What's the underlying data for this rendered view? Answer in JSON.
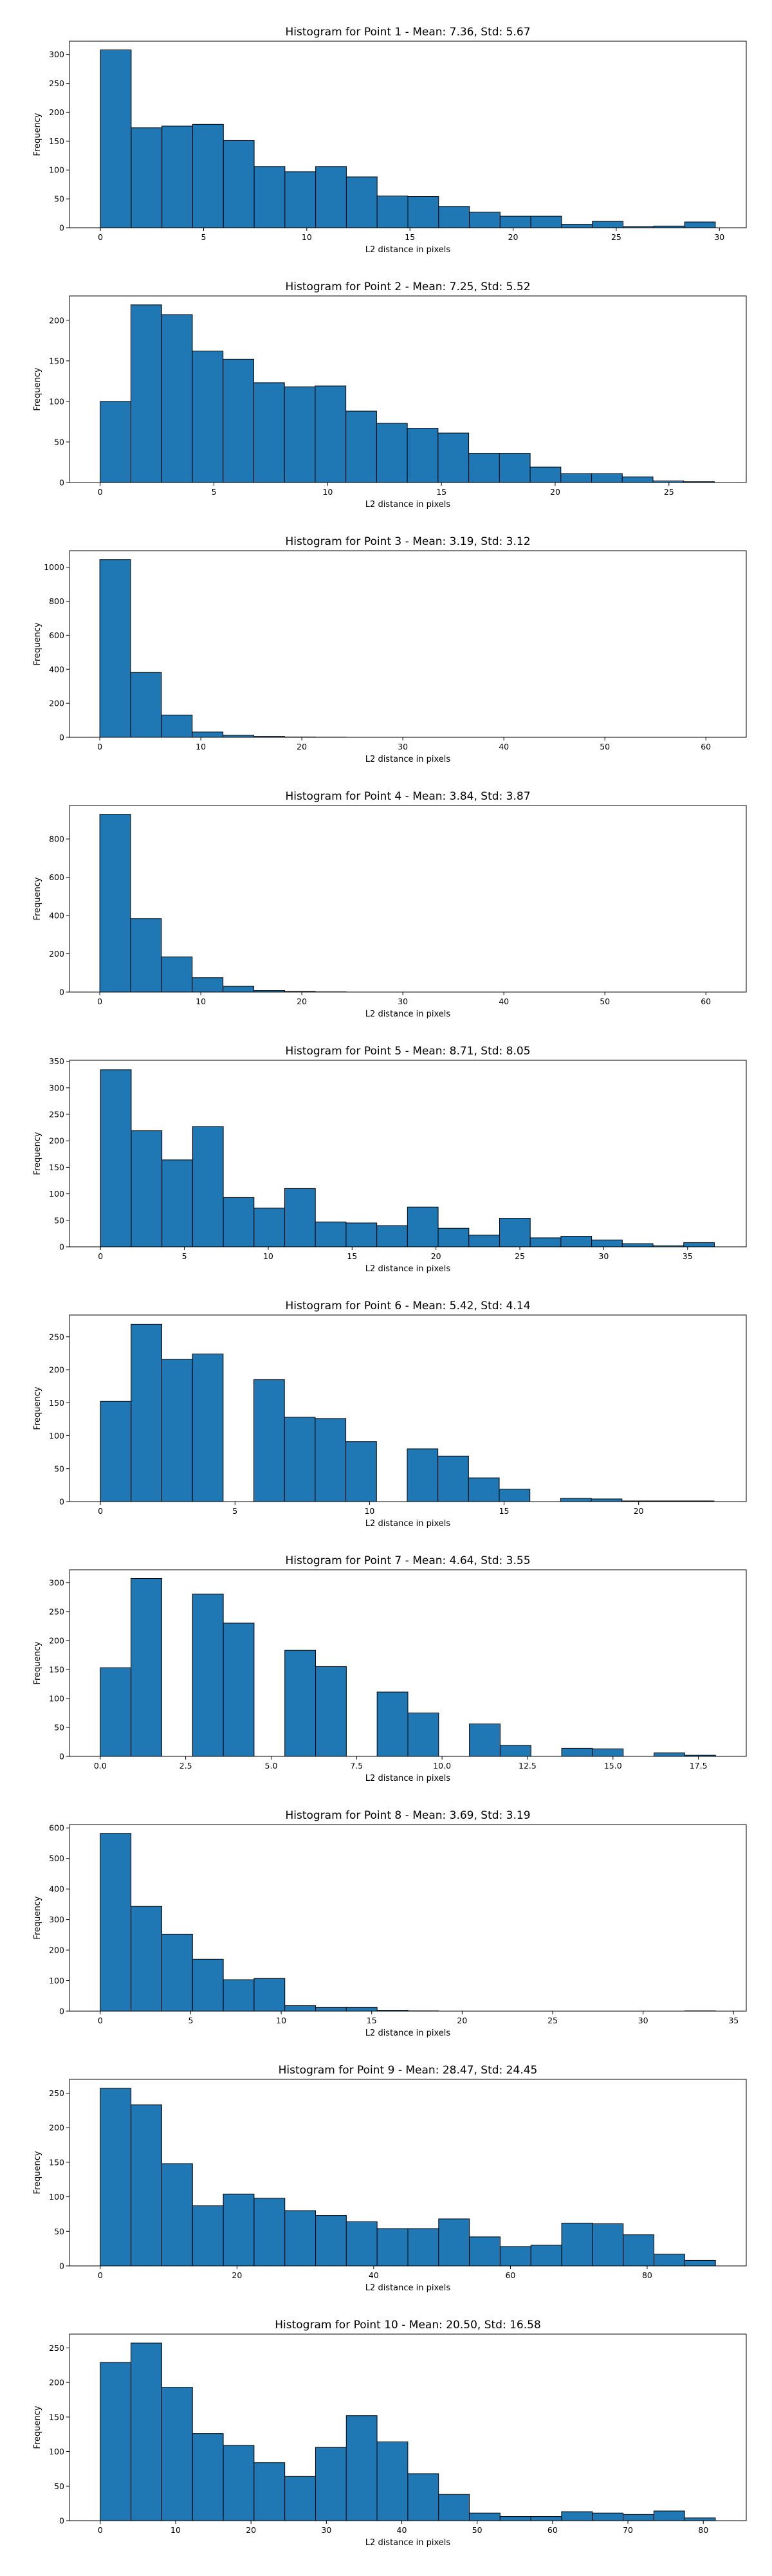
{
  "chart_data": [
    {
      "type": "bar",
      "title": "Histogram for Point 1 - Mean: 7.36, Std: 5.67",
      "xlabel": "L2 distance in pixels",
      "ylabel": "Frequency",
      "bin_start": 0,
      "bin_width": 1.49,
      "values": [
        308,
        173,
        176,
        179,
        151,
        106,
        97,
        106,
        88,
        55,
        54,
        37,
        27,
        20,
        20,
        6,
        11,
        2,
        3,
        10
      ],
      "xlim": [
        -1.5,
        31.3
      ],
      "ylim": [
        0,
        323
      ],
      "xticks": [
        0,
        5,
        10,
        15,
        20,
        25,
        30
      ],
      "xtick_labels": [
        "0",
        "5",
        "10",
        "15",
        "20",
        "25",
        "30"
      ],
      "yticks": [
        0,
        50,
        100,
        150,
        200,
        250,
        300
      ],
      "bar_color": "#1f77b4"
    },
    {
      "type": "bar",
      "title": "Histogram for Point 2 - Mean: 7.25, Std: 5.52",
      "xlabel": "L2 distance in pixels",
      "ylabel": "Frequency",
      "bin_start": 0,
      "bin_width": 1.35,
      "values": [
        100,
        219,
        207,
        162,
        152,
        123,
        118,
        119,
        88,
        73,
        67,
        61,
        36,
        36,
        19,
        11,
        11,
        7,
        2,
        1
      ],
      "xlim": [
        -1.35,
        28.4
      ],
      "ylim": [
        0,
        230
      ],
      "xticks": [
        0,
        5,
        10,
        15,
        20,
        25
      ],
      "xtick_labels": [
        "0",
        "5",
        "10",
        "15",
        "20",
        "25"
      ],
      "yticks": [
        0,
        50,
        100,
        150,
        200
      ],
      "bar_color": "#1f77b4"
    },
    {
      "type": "bar",
      "title": "Histogram for Point 3 - Mean: 3.19, Std: 3.12",
      "xlabel": "L2 distance in pixels",
      "ylabel": "Frequency",
      "bin_start": 0,
      "bin_width": 3.05,
      "values": [
        1045,
        381,
        131,
        31,
        12,
        5,
        2,
        1,
        0,
        0,
        0,
        0,
        0,
        0,
        0,
        0,
        0,
        0,
        0,
        0
      ],
      "xlim": [
        -3.0,
        64.0
      ],
      "ylim": [
        0,
        1097
      ],
      "xticks": [
        0,
        10,
        20,
        30,
        40,
        50,
        60
      ],
      "xtick_labels": [
        "0",
        "10",
        "20",
        "30",
        "40",
        "50",
        "60"
      ],
      "yticks": [
        0,
        200,
        400,
        600,
        800,
        1000
      ],
      "bar_color": "#1f77b4"
    },
    {
      "type": "bar",
      "title": "Histogram for Point 4 - Mean: 3.84, Std: 3.87",
      "xlabel": "L2 distance in pixels",
      "ylabel": "Frequency",
      "bin_start": 0,
      "bin_width": 3.05,
      "values": [
        929,
        384,
        184,
        75,
        30,
        8,
        3,
        1,
        0,
        0,
        0,
        0,
        0,
        0,
        0,
        0,
        0,
        0,
        0,
        0
      ],
      "xlim": [
        -3.0,
        64.0
      ],
      "ylim": [
        0,
        975
      ],
      "xticks": [
        0,
        10,
        20,
        30,
        40,
        50,
        60
      ],
      "xtick_labels": [
        "0",
        "10",
        "20",
        "30",
        "40",
        "50",
        "60"
      ],
      "yticks": [
        0,
        200,
        400,
        600,
        800
      ],
      "bar_color": "#1f77b4"
    },
    {
      "type": "bar",
      "title": "Histogram for Point 5 - Mean: 8.71, Std: 8.05",
      "xlabel": "L2 distance in pixels",
      "ylabel": "Frequency",
      "bin_start": 0,
      "bin_width": 1.83,
      "values": [
        334,
        219,
        164,
        227,
        93,
        73,
        110,
        47,
        45,
        40,
        75,
        35,
        22,
        54,
        17,
        20,
        13,
        6,
        2,
        8
      ],
      "xlim": [
        -1.85,
        38.5
      ],
      "ylim": [
        0,
        352
      ],
      "xticks": [
        0,
        5,
        10,
        15,
        20,
        25,
        30,
        35
      ],
      "xtick_labels": [
        "0",
        "5",
        "10",
        "15",
        "20",
        "25",
        "30",
        "35"
      ],
      "yticks": [
        0,
        50,
        100,
        150,
        200,
        250,
        300,
        350
      ],
      "bar_color": "#1f77b4"
    },
    {
      "type": "bar",
      "title": "Histogram for Point 6 - Mean: 5.42, Std: 4.14",
      "xlabel": "L2 distance in pixels",
      "ylabel": "Frequency",
      "bin_start": 0,
      "bin_width": 1.14,
      "values": [
        152,
        269,
        216,
        224,
        0,
        185,
        128,
        126,
        91,
        0,
        80,
        69,
        36,
        19,
        0,
        5,
        4,
        1,
        1,
        1
      ],
      "xlim": [
        -1.15,
        24.0
      ],
      "ylim": [
        0,
        283
      ],
      "xticks": [
        0,
        5,
        10,
        15,
        20
      ],
      "xtick_labels": [
        "0",
        "5",
        "10",
        "15",
        "20"
      ],
      "yticks": [
        0,
        50,
        100,
        150,
        200,
        250
      ],
      "bar_color": "#1f77b4"
    },
    {
      "type": "bar",
      "title": "Histogram for Point 7 - Mean: 4.64, Std: 3.55",
      "xlabel": "L2 distance in pixels",
      "ylabel": "Frequency",
      "bin_start": 0,
      "bin_width": 0.9,
      "values": [
        153,
        307,
        0,
        280,
        230,
        0,
        183,
        155,
        0,
        111,
        75,
        0,
        56,
        19,
        0,
        14,
        13,
        0,
        6,
        2
      ],
      "xlim": [
        -0.9,
        18.9
      ],
      "ylim": [
        0,
        322
      ],
      "xticks": [
        0,
        2.5,
        5,
        7.5,
        10,
        12.5,
        15,
        17.5
      ],
      "xtick_labels": [
        "0.0",
        "2.5",
        "5.0",
        "7.5",
        "10.0",
        "12.5",
        "15.0",
        "17.5"
      ],
      "yticks": [
        0,
        50,
        100,
        150,
        200,
        250,
        300
      ],
      "bar_color": "#1f77b4"
    },
    {
      "type": "bar",
      "title": "Histogram for Point 8 - Mean: 3.69, Std: 3.19",
      "xlabel": "L2 distance in pixels",
      "ylabel": "Frequency",
      "bin_start": 0,
      "bin_width": 1.7,
      "values": [
        582,
        343,
        252,
        170,
        103,
        107,
        18,
        12,
        12,
        3,
        1,
        0,
        0,
        0,
        0,
        0,
        0,
        0,
        0,
        1
      ],
      "xlim": [
        -1.7,
        35.7
      ],
      "ylim": [
        0,
        611
      ],
      "xticks": [
        0,
        5,
        10,
        15,
        20,
        25,
        30,
        35
      ],
      "xtick_labels": [
        "0",
        "5",
        "10",
        "15",
        "20",
        "25",
        "30",
        "35"
      ],
      "yticks": [
        0,
        100,
        200,
        300,
        400,
        500,
        600
      ],
      "bar_color": "#1f77b4"
    },
    {
      "type": "bar",
      "title": "Histogram for Point 9 - Mean: 28.47, Std: 24.45",
      "xlabel": "L2 distance in pixels",
      "ylabel": "Frequency",
      "bin_start": 0,
      "bin_width": 4.5,
      "values": [
        257,
        233,
        148,
        87,
        104,
        98,
        80,
        73,
        64,
        54,
        54,
        68,
        42,
        28,
        30,
        62,
        61,
        45,
        17,
        8
      ],
      "xlim": [
        -4.5,
        94.5
      ],
      "ylim": [
        0,
        270
      ],
      "xticks": [
        0,
        20,
        40,
        60,
        80
      ],
      "xtick_labels": [
        "0",
        "20",
        "40",
        "60",
        "80"
      ],
      "yticks": [
        0,
        50,
        100,
        150,
        200,
        250
      ],
      "bar_color": "#1f77b4"
    },
    {
      "type": "bar",
      "title": "Histogram for Point 10 - Mean: 20.50, Std: 16.58",
      "xlabel": "L2 distance in pixels",
      "ylabel": "Frequency",
      "bin_start": 0,
      "bin_width": 4.08,
      "values": [
        229,
        257,
        193,
        126,
        109,
        84,
        64,
        106,
        152,
        114,
        68,
        38,
        11,
        6,
        6,
        13,
        11,
        9,
        14,
        4
      ],
      "xlim": [
        -4.08,
        85.7
      ],
      "ylim": [
        0,
        270
      ],
      "xticks": [
        0,
        10,
        20,
        30,
        40,
        50,
        60,
        70,
        80
      ],
      "xtick_labels": [
        "0",
        "10",
        "20",
        "30",
        "40",
        "50",
        "60",
        "70",
        "80"
      ],
      "yticks": [
        0,
        50,
        100,
        150,
        200,
        250
      ],
      "bar_color": "#1f77b4"
    }
  ]
}
